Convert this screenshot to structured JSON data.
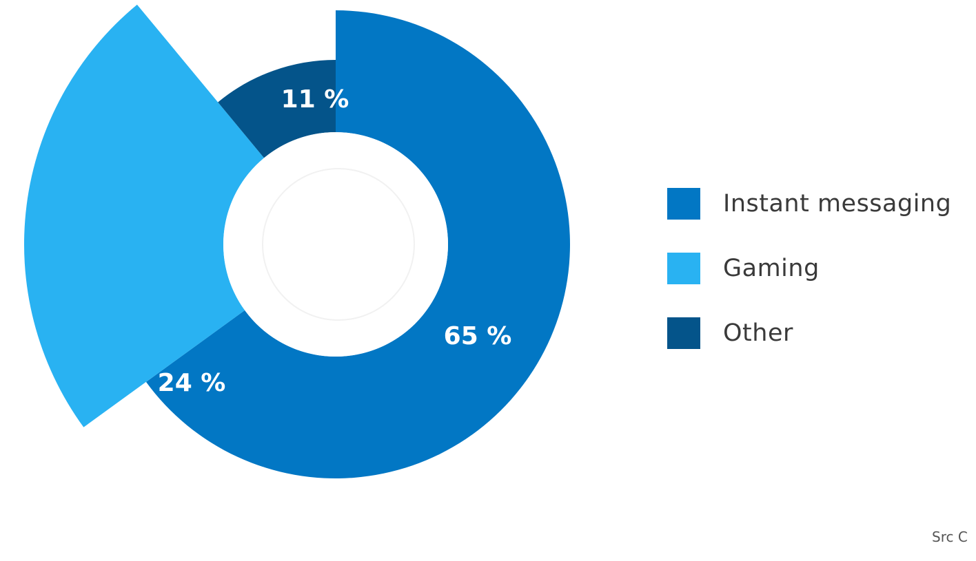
{
  "chart_data": {
    "type": "pie",
    "variant": "variable-radius donut",
    "categories": [
      "Instant messaging",
      "Gaming",
      "Other"
    ],
    "values": [
      65,
      24,
      11
    ],
    "value_labels": [
      "65 %",
      "24 %",
      "11 %"
    ],
    "colors": [
      "#0277c4",
      "#29b2f2",
      "#04548a"
    ],
    "start_angle": "12 o'clock",
    "direction": "clockwise",
    "legend": {
      "placement": "right",
      "entries": [
        "Instant messaging",
        "Gaming",
        "Other"
      ]
    },
    "title": "",
    "grid": false
  },
  "source_note": "Src C",
  "center_hole_color": "#ffffff"
}
